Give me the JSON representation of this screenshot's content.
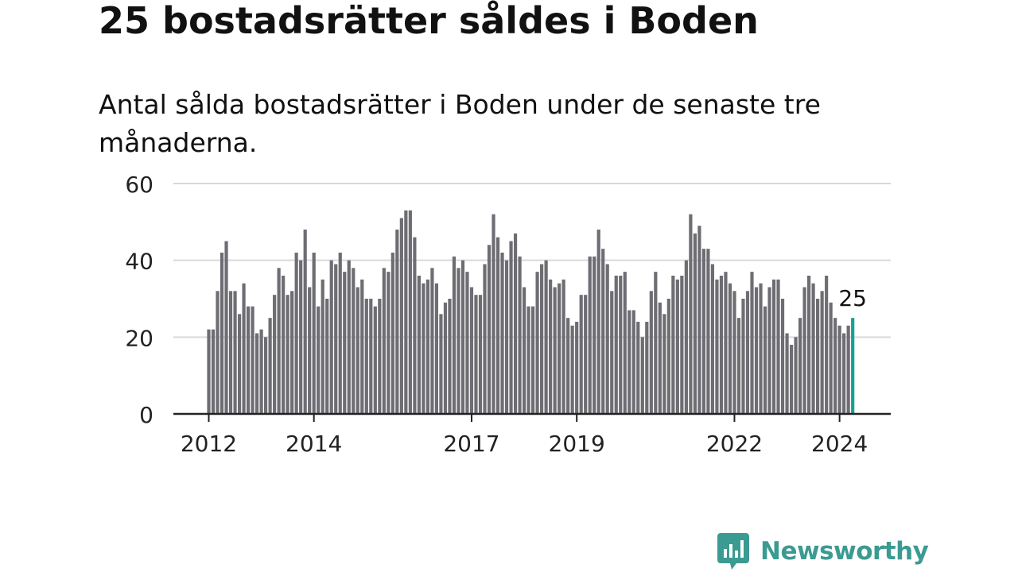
{
  "header": {
    "title": "25 bostadsrätter såldes i Boden",
    "subtitle": "Antal sålda bostadsrätter i Boden under de senaste tre månaderna."
  },
  "logo": {
    "text": "Newsworthy"
  },
  "colors": {
    "bar": "#6e6d73",
    "highlight": "#16a198",
    "grid": "#d9d9d9",
    "axis": "#222222",
    "logo": "#3b9a91"
  },
  "chart_data": {
    "type": "bar",
    "title": "",
    "xlabel": "",
    "ylabel": "",
    "ylim": [
      0,
      60
    ],
    "yticks": [
      0,
      20,
      40,
      60
    ],
    "x_tick_labels": [
      "2012",
      "2014",
      "2017",
      "2019",
      "2022",
      "2024"
    ],
    "x_tick_indices": [
      0,
      24,
      60,
      84,
      120,
      144
    ],
    "start_month": "2012-01",
    "highlight_label": "25",
    "values": [
      22,
      22,
      32,
      42,
      45,
      32,
      32,
      26,
      34,
      28,
      28,
      21,
      22,
      20,
      25,
      31,
      38,
      36,
      31,
      32,
      42,
      40,
      48,
      33,
      42,
      28,
      35,
      30,
      40,
      39,
      42,
      37,
      40,
      38,
      33,
      35,
      30,
      30,
      28,
      30,
      38,
      37,
      42,
      48,
      51,
      53,
      53,
      46,
      36,
      34,
      35,
      38,
      34,
      26,
      29,
      30,
      41,
      38,
      40,
      37,
      33,
      31,
      31,
      39,
      44,
      52,
      46,
      42,
      40,
      45,
      47,
      41,
      33,
      28,
      28,
      37,
      39,
      40,
      35,
      33,
      34,
      35,
      25,
      23,
      24,
      31,
      31,
      41,
      41,
      48,
      43,
      39,
      32,
      36,
      36,
      37,
      27,
      27,
      24,
      20,
      24,
      32,
      37,
      29,
      26,
      30,
      36,
      35,
      36,
      40,
      52,
      47,
      49,
      43,
      43,
      39,
      35,
      36,
      37,
      34,
      32,
      25,
      30,
      32,
      37,
      33,
      34,
      28,
      33,
      35,
      35,
      30,
      21,
      18,
      20,
      25,
      33,
      36,
      34,
      30,
      32,
      36,
      29,
      25,
      23,
      21,
      23,
      25
    ]
  }
}
